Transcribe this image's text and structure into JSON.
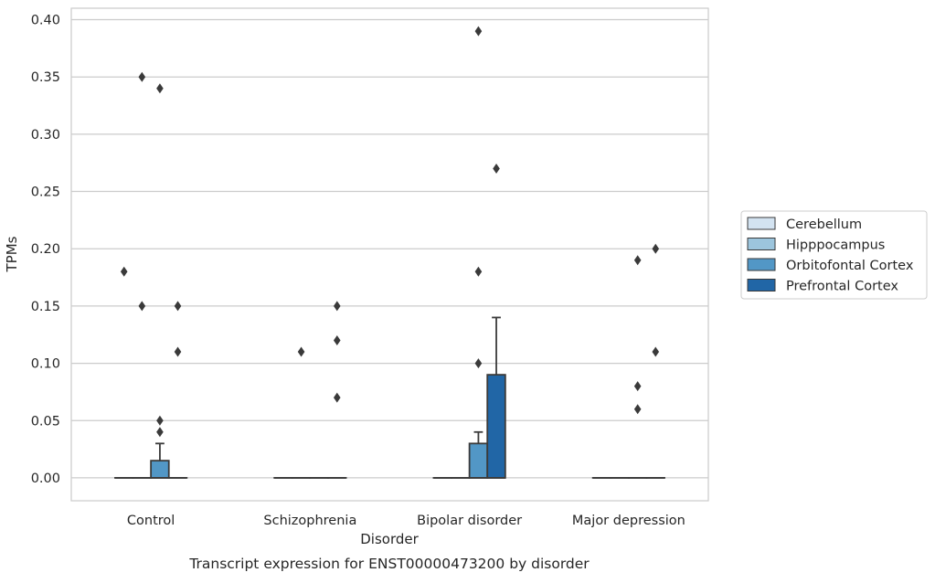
{
  "chart_data": {
    "type": "box",
    "title": "Transcript expression for ENST00000473200 by disorder",
    "xlabel": "Disorder",
    "ylabel": "TPMs",
    "ylim": [
      -0.02,
      0.41
    ],
    "yticks": [
      0.0,
      0.05,
      0.1,
      0.15,
      0.2,
      0.25,
      0.3,
      0.35,
      0.4
    ],
    "ytick_labels": [
      "0.00",
      "0.05",
      "0.10",
      "0.15",
      "0.20",
      "0.25",
      "0.30",
      "0.35",
      "0.40"
    ],
    "grid": "horizontal",
    "legend_position": "right",
    "categories": [
      "Control",
      "Schizophrenia",
      "Bipolar disorder",
      "Major depression"
    ],
    "series": [
      {
        "name": "Cerebellum",
        "color": "#d3e3f1",
        "boxes": [
          {
            "q1": 0,
            "median": 0,
            "q3": 0,
            "whisker_low": 0,
            "whisker_high": 0,
            "outliers": [
              0.18
            ]
          },
          {
            "q1": 0,
            "median": 0,
            "q3": 0,
            "whisker_low": 0,
            "whisker_high": 0,
            "outliers": []
          },
          {
            "q1": 0,
            "median": 0,
            "q3": 0,
            "whisker_low": 0,
            "whisker_high": 0,
            "outliers": []
          },
          {
            "q1": 0,
            "median": 0,
            "q3": 0,
            "whisker_low": 0,
            "whisker_high": 0,
            "outliers": []
          }
        ]
      },
      {
        "name": "Hipppocampus",
        "color": "#9cc5dd",
        "boxes": [
          {
            "q1": 0,
            "median": 0,
            "q3": 0,
            "whisker_low": 0,
            "whisker_high": 0,
            "outliers": [
              0.35,
              0.15
            ]
          },
          {
            "q1": 0,
            "median": 0,
            "q3": 0,
            "whisker_low": 0,
            "whisker_high": 0,
            "outliers": [
              0.11
            ]
          },
          {
            "q1": 0,
            "median": 0,
            "q3": 0,
            "whisker_low": 0,
            "whisker_high": 0,
            "outliers": []
          },
          {
            "q1": 0,
            "median": 0,
            "q3": 0,
            "whisker_low": 0,
            "whisker_high": 0,
            "outliers": []
          }
        ]
      },
      {
        "name": "Orbitofontal Cortex",
        "color": "#5297c6",
        "boxes": [
          {
            "q1": 0,
            "median": 0,
            "q3": 0.015,
            "whisker_low": 0,
            "whisker_high": 0.03,
            "outliers": [
              0.34,
              0.05,
              0.04
            ]
          },
          {
            "q1": 0,
            "median": 0,
            "q3": 0,
            "whisker_low": 0,
            "whisker_high": 0,
            "outliers": []
          },
          {
            "q1": 0,
            "median": 0,
            "q3": 0.03,
            "whisker_low": 0,
            "whisker_high": 0.04,
            "outliers": [
              0.39,
              0.18,
              0.1
            ]
          },
          {
            "q1": 0,
            "median": 0,
            "q3": 0,
            "whisker_low": 0,
            "whisker_high": 0,
            "outliers": [
              0.19,
              0.08,
              0.06
            ]
          }
        ]
      },
      {
        "name": "Prefrontal Cortex",
        "color": "#2166a6",
        "boxes": [
          {
            "q1": 0,
            "median": 0,
            "q3": 0,
            "whisker_low": 0,
            "whisker_high": 0,
            "outliers": [
              0.15,
              0.11
            ]
          },
          {
            "q1": 0,
            "median": 0,
            "q3": 0,
            "whisker_low": 0,
            "whisker_high": 0,
            "outliers": [
              0.15,
              0.12,
              0.07
            ]
          },
          {
            "q1": 0,
            "median": 0,
            "q3": 0.09,
            "whisker_low": 0,
            "whisker_high": 0.14,
            "outliers": [
              0.27
            ]
          },
          {
            "q1": 0,
            "median": 0,
            "q3": 0,
            "whisker_low": 0,
            "whisker_high": 0,
            "outliers": [
              0.2,
              0.11
            ]
          }
        ]
      }
    ]
  }
}
